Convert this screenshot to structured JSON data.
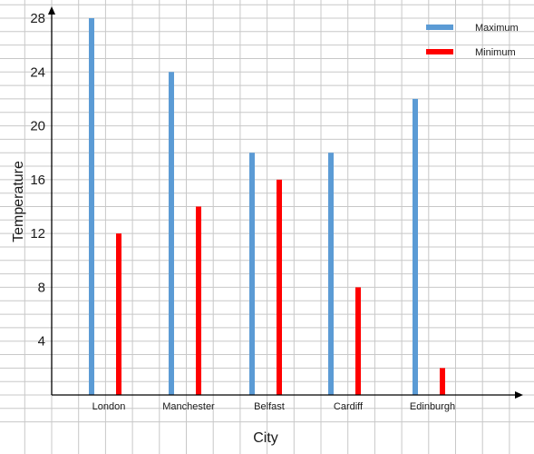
{
  "chart_data": {
    "type": "bar",
    "categories": [
      "London",
      "Manchester",
      "Belfast",
      "Cardiff",
      "Edinburgh"
    ],
    "series": [
      {
        "name": "Maximum",
        "values": [
          28,
          24,
          18,
          18,
          22
        ]
      },
      {
        "name": "Minimum",
        "values": [
          12,
          14,
          16,
          8,
          2
        ]
      }
    ],
    "xlabel": "City",
    "ylabel": "Temperature",
    "ylim": [
      0,
      28
    ],
    "yticks": [
      "4",
      "8",
      "12",
      "16",
      "20",
      "24",
      "28"
    ],
    "grid": true,
    "legend": "top-right",
    "colors": {
      "Maximum": "#5b9bd5",
      "Minimum": "#ff0000",
      "grid": "#c8c8c8",
      "axis": "#000000"
    }
  }
}
